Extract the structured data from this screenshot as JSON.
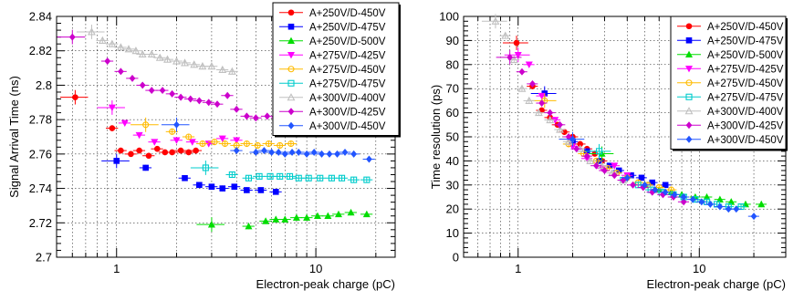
{
  "chart_data": [
    {
      "type": "scatter",
      "xlabel": "Electron-peak charge (pC)",
      "ylabel": "Signal Arrival Time (ns)",
      "xscale": "log",
      "xlim": [
        0.5,
        25
      ],
      "ylim": [
        2.7,
        2.84
      ],
      "grid": true,
      "legend_position": "top-right",
      "x_tick_labels": [
        "1",
        "10"
      ],
      "y_tick_labels": [
        "2.7",
        "2.72",
        "2.74",
        "2.76",
        "2.78",
        "2.8",
        "2.82",
        "2.84"
      ],
      "series": [
        {
          "name": "A+250V/D-450V",
          "color": "#ff0000",
          "marker": "circle",
          "x": [
            0.62,
            0.95,
            1.05,
            1.18,
            1.3,
            1.45,
            1.6,
            1.75,
            1.9,
            2.1,
            2.3,
            2.5
          ],
          "y": [
            2.793,
            2.775,
            2.762,
            2.76,
            2.762,
            2.759,
            2.763,
            2.761,
            2.761,
            2.762,
            2.761,
            2.762
          ]
        },
        {
          "name": "A+250V/D-475V",
          "color": "#0000ff",
          "marker": "square",
          "x": [
            1.0,
            1.4,
            2.2,
            2.6,
            3.0,
            3.4,
            3.9,
            4.5,
            5.3,
            6.3
          ],
          "y": [
            2.756,
            2.752,
            2.746,
            2.742,
            2.741,
            2.74,
            2.741,
            2.739,
            2.739,
            2.738
          ]
        },
        {
          "name": "A+250V/D-500V",
          "color": "#00dd00",
          "marker": "triangle",
          "x": [
            3.0,
            4.6,
            5.6,
            6.3,
            7.0,
            8.0,
            9.0,
            10.2,
            11.5,
            13.0,
            15.0,
            18.0
          ],
          "y": [
            2.719,
            2.718,
            2.721,
            2.722,
            2.722,
            2.723,
            2.723,
            2.724,
            2.724,
            2.725,
            2.726,
            2.725
          ]
        },
        {
          "name": "A+275V/D-425V",
          "color": "#ff00ff",
          "marker": "triangle-down",
          "x": [
            0.95,
            1.1,
            1.3,
            1.55,
            2.0,
            2.4,
            2.9,
            3.4,
            4.0
          ],
          "y": [
            2.787,
            2.778,
            2.771,
            2.767,
            2.768,
            2.767,
            2.766,
            2.769,
            2.768
          ]
        },
        {
          "name": "A+275V/D-450V",
          "color": "#ffbb00",
          "marker": "open-circle",
          "x": [
            1.4,
            1.9,
            2.3,
            2.7,
            3.1,
            3.5,
            4.0,
            4.5,
            5.1,
            5.8,
            6.6,
            7.5
          ],
          "y": [
            2.777,
            2.773,
            2.77,
            2.766,
            2.767,
            2.766,
            2.765,
            2.766,
            2.765,
            2.766,
            2.765,
            2.766
          ]
        },
        {
          "name": "A+275V/D-475V",
          "color": "#00cccc",
          "marker": "open-square",
          "x": [
            2.8,
            3.8,
            4.6,
            5.2,
            5.9,
            6.6,
            7.4,
            8.2,
            9.2,
            10.5,
            12.0,
            13.5,
            15.5,
            18.0
          ],
          "y": [
            2.752,
            2.748,
            2.746,
            2.747,
            2.747,
            2.747,
            2.747,
            2.746,
            2.746,
            2.746,
            2.746,
            2.746,
            2.745,
            2.745
          ]
        },
        {
          "name": "A+300V/D-400V",
          "color": "#c0c0c0",
          "marker": "open-triangle",
          "x": [
            0.75,
            0.85,
            0.95,
            1.05,
            1.15,
            1.25,
            1.35,
            1.5,
            1.65,
            1.8,
            2.0,
            2.2,
            2.45,
            2.7,
            3.0,
            3.4,
            3.8
          ],
          "y": [
            2.831,
            2.826,
            2.824,
            2.822,
            2.821,
            2.82,
            2.818,
            2.818,
            2.816,
            2.815,
            2.814,
            2.813,
            2.812,
            2.811,
            2.811,
            2.809,
            2.808
          ]
        },
        {
          "name": "A+300V/D-425V",
          "color": "#cc00cc",
          "marker": "diamond",
          "x": [
            0.6,
            0.9,
            1.05,
            1.2,
            1.35,
            1.5,
            1.7,
            1.9,
            2.1,
            2.35,
            2.6,
            2.9,
            3.2,
            3.6,
            4.0,
            4.5,
            5.0,
            5.7,
            6.4,
            7.2,
            8.0,
            9.0,
            10.5
          ],
          "y": [
            2.828,
            2.814,
            2.808,
            2.804,
            2.8,
            2.797,
            2.797,
            2.795,
            2.793,
            2.792,
            2.791,
            2.79,
            2.789,
            2.794,
            2.786,
            2.782,
            2.781,
            2.782,
            2.781,
            2.781,
            2.781,
            2.78,
            2.78
          ]
        },
        {
          "name": "A+300V/D-450V",
          "color": "#2255ff",
          "marker": "diamond",
          "x": [
            2.0,
            4.0,
            5.0,
            5.5,
            6.0,
            6.5,
            7.0,
            7.6,
            8.2,
            9.0,
            9.8,
            10.7,
            11.7,
            12.8,
            14.0,
            15.5,
            18.5
          ],
          "y": [
            2.777,
            2.762,
            2.761,
            2.762,
            2.761,
            2.761,
            2.76,
            2.761,
            2.761,
            2.76,
            2.761,
            2.76,
            2.76,
            2.76,
            2.761,
            2.76,
            2.757
          ]
        }
      ]
    },
    {
      "type": "scatter",
      "xlabel": "Electron-peak charge (pC)",
      "ylabel": "Time resolution (ps)",
      "xscale": "log",
      "xlim": [
        0.5,
        30
      ],
      "ylim": [
        0,
        100
      ],
      "grid": true,
      "legend_position": "top-right",
      "x_tick_labels": [
        "1",
        "10"
      ],
      "y_tick_labels": [
        "0",
        "10",
        "20",
        "30",
        "40",
        "50",
        "60",
        "70",
        "80",
        "90",
        "100"
      ],
      "series": [
        {
          "name": "A+250V/D-450V",
          "color": "#ff0000",
          "marker": "circle",
          "x": [
            0.98,
            1.2,
            1.35,
            1.5,
            1.65,
            1.8,
            2.0,
            2.2,
            2.4,
            2.65,
            2.9
          ],
          "y": [
            89,
            71,
            61,
            58,
            55,
            52,
            50,
            47,
            45,
            43,
            40
          ]
        },
        {
          "name": "A+250V/D-475V",
          "color": "#0000ff",
          "marker": "square",
          "x": [
            1.4,
            2.0,
            2.4,
            2.8,
            3.2,
            3.6,
            4.2,
            4.8,
            5.5,
            6.5
          ],
          "y": [
            68,
            48,
            44,
            40,
            38,
            36,
            34,
            33,
            31,
            30
          ]
        },
        {
          "name": "A+250V/D-500V",
          "color": "#00dd00",
          "marker": "triangle",
          "x": [
            2.9,
            5.0,
            6.0,
            7.0,
            8.0,
            9.5,
            11.0,
            13.0,
            15.0,
            18.0,
            22.0
          ],
          "y": [
            43,
            30,
            28,
            27,
            26,
            25,
            25,
            24,
            23,
            22,
            22
          ]
        },
        {
          "name": "A+275V/D-425V",
          "color": "#ff00ff",
          "marker": "triangle-down",
          "x": [
            1.0,
            1.15,
            1.35,
            1.6,
            2.0,
            2.4,
            2.9,
            3.4,
            4.0
          ],
          "y": [
            84,
            80,
            67,
            57,
            46,
            41,
            37,
            38,
            34
          ]
        },
        {
          "name": "A+275V/D-450V",
          "color": "#ffbb00",
          "marker": "open-circle",
          "x": [
            1.4,
            1.9,
            2.3,
            2.7,
            3.1,
            3.5,
            4.0,
            4.6,
            5.2,
            6.0,
            7.0
          ],
          "y": [
            65,
            47,
            43,
            40,
            37,
            35,
            33,
            31,
            30,
            29,
            28
          ]
        },
        {
          "name": "A+275V/D-475V",
          "color": "#00cccc",
          "marker": "open-square",
          "x": [
            2.8,
            3.8,
            4.6,
            5.4,
            6.2,
            7.2,
            8.2,
            9.5,
            11.0,
            12.5,
            14.5,
            17.0
          ],
          "y": [
            44,
            32,
            30,
            28,
            27,
            26,
            25,
            24,
            23,
            22,
            21,
            21
          ]
        },
        {
          "name": "A+300V/D-400V",
          "color": "#c0c0c0",
          "marker": "open-triangle",
          "x": [
            0.75,
            0.85,
            0.95,
            1.05,
            1.15,
            1.3,
            1.5,
            1.7,
            1.9,
            2.2,
            2.5,
            2.9,
            3.3,
            3.8
          ],
          "y": [
            98,
            92,
            82,
            70,
            65,
            60,
            57,
            53,
            48,
            45,
            40,
            38,
            35,
            32
          ]
        },
        {
          "name": "A+300V/D-425V",
          "color": "#cc00cc",
          "marker": "diamond",
          "x": [
            0.9,
            1.05,
            1.2,
            1.35,
            1.5,
            1.7,
            1.9,
            2.1,
            2.4,
            2.7,
            3.0,
            3.4,
            3.8,
            4.3,
            4.9,
            5.5,
            6.3,
            7.2,
            8.2
          ],
          "y": [
            83,
            77,
            72,
            64,
            60,
            55,
            50,
            45,
            42,
            38,
            36,
            34,
            32,
            30,
            29,
            27,
            26,
            25,
            23
          ]
        },
        {
          "name": "A+300V/D-450V",
          "color": "#2255ff",
          "marker": "diamond",
          "x": [
            2.0,
            4.0,
            5.0,
            5.7,
            6.5,
            7.3,
            8.2,
            9.2,
            10.3,
            11.5,
            13.0,
            14.5,
            16.0,
            20.0
          ],
          "y": [
            49,
            33,
            30,
            28,
            27,
            26,
            25,
            24,
            23,
            22,
            21,
            20,
            20,
            17
          ]
        }
      ]
    }
  ]
}
